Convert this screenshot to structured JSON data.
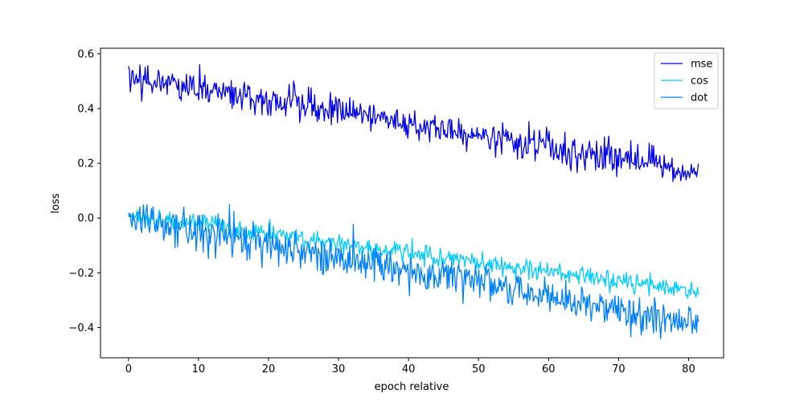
{
  "chart_data": {
    "type": "line",
    "title": "",
    "xlabel": "epoch relative",
    "ylabel": "loss",
    "xlim": [
      -4,
      85
    ],
    "ylim": [
      -0.51,
      0.62
    ],
    "xticks": [
      0,
      10,
      20,
      30,
      40,
      50,
      60,
      70,
      80
    ],
    "yticks": [
      -0.4,
      -0.2,
      0.0,
      0.2,
      0.4,
      0.6
    ],
    "ytick_labels": [
      "−0.4",
      "−0.2",
      "0.0",
      "0.2",
      "0.4",
      "0.6"
    ],
    "xtick_labels": [
      "0",
      "10",
      "20",
      "30",
      "40",
      "50",
      "60",
      "70",
      "80"
    ],
    "grid": false,
    "legend_position": "top-right",
    "x_range": [
      0,
      81.4
    ],
    "num_points": 650,
    "series": [
      {
        "name": "mse",
        "color": "#0000ee",
        "trend_start": 0.52,
        "trend_end": 0.17,
        "noise_amplitude": 0.028,
        "min_value": 0.13,
        "max_value": 0.56
      },
      {
        "name": "cos",
        "color": "#00ccff",
        "trend_start": 0.01,
        "trend_end": -0.27,
        "noise_amplitude": 0.018,
        "min_value": -0.31,
        "max_value": 0.04
      },
      {
        "name": "dot",
        "color": "#0080ff",
        "trend_start": 0.0,
        "trend_end": -0.39,
        "noise_amplitude": 0.035,
        "min_value": -0.46,
        "max_value": 0.05
      }
    ]
  }
}
